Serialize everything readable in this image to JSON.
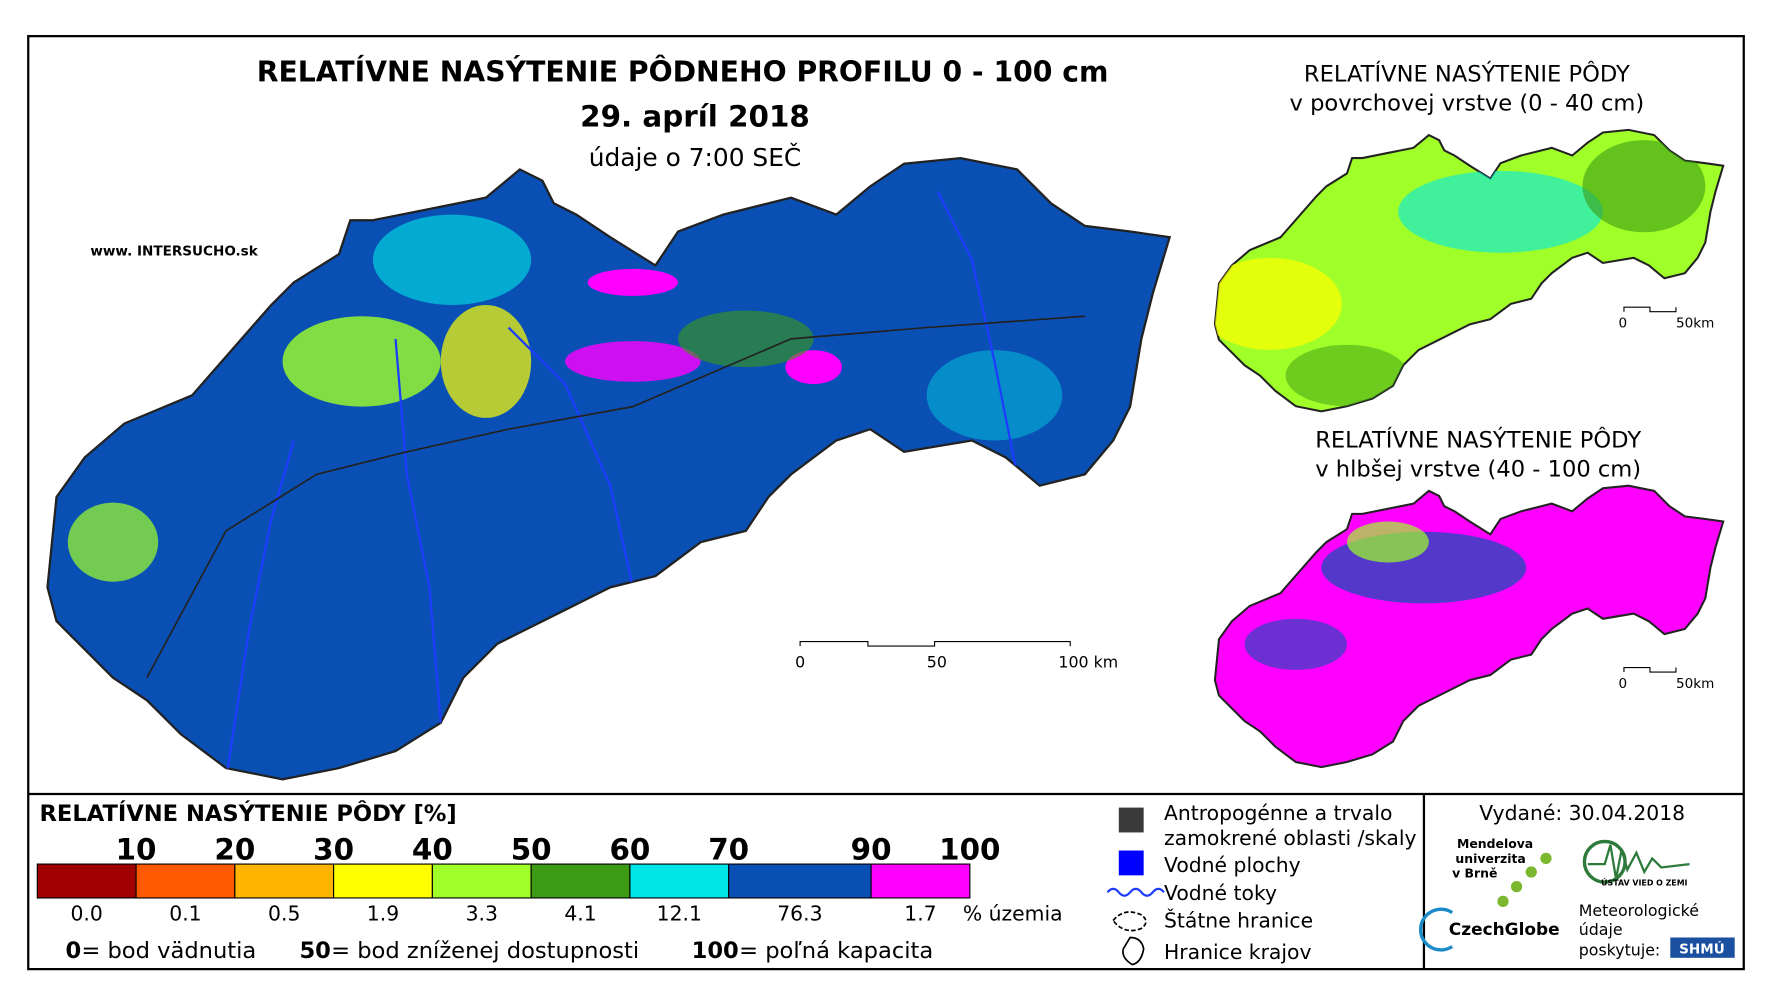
{
  "header": {
    "title": "RELATÍVNE NASÝTENIE PÔDNEHO PROFILU 0 - 100 cm",
    "date": "29. apríl 2018",
    "time_note": "údaje o 7:00 SEČ",
    "website": "www. INTERSUCHO.sk"
  },
  "main_map": {
    "scale_labels": [
      "0",
      "50",
      "100 km"
    ]
  },
  "insets": [
    {
      "title": [
        "RELATÍVNE NASÝTENIE PÔDY",
        "v povrchovej vrstve (0 - 40 cm)"
      ],
      "scale_labels": [
        "0",
        "50km"
      ]
    },
    {
      "title": [
        "RELATÍVNE NASÝTENIE PÔDY",
        "v hlbšej vrstve (40 - 100 cm)"
      ],
      "scale_labels": [
        "0",
        "50km"
      ]
    }
  ],
  "legend": {
    "title": "RELATÍVNE NASÝTENIE PÔDY [%]",
    "bounds": [
      "10",
      "20",
      "30",
      "40",
      "50",
      "60",
      "70",
      "90",
      "100"
    ],
    "classes": [
      {
        "color": "#a00000",
        "share": "0.0"
      },
      {
        "color": "#ff5a00",
        "share": "0.1"
      },
      {
        "color": "#ffb400",
        "share": "0.5"
      },
      {
        "color": "#ffff00",
        "share": "1.9"
      },
      {
        "color": "#a0ff28",
        "share": "3.3"
      },
      {
        "color": "#3c9a14",
        "share": "4.1"
      },
      {
        "color": "#00e6e6",
        "share": "12.1"
      },
      {
        "color": "#0a50b4",
        "share": "76.3"
      },
      {
        "color": "#ff00ff",
        "share": "1.7"
      }
    ],
    "share_unit": "% územia",
    "notes": [
      {
        "value": "0",
        "text": "= bod vädnutia"
      },
      {
        "value": "50",
        "text": "= bod zníženej dostupnosti"
      },
      {
        "value": "100",
        "text": "= poľná kapacita"
      }
    ]
  },
  "map_legend": {
    "items": [
      "Antropogénne a trvalo",
      "zamokrené oblasti /skaly",
      "Vodné plochy",
      "Vodné toky",
      "Štátne hranice",
      "Hranice krajov"
    ]
  },
  "footer": {
    "issued": "Vydané: 30.04.2018",
    "university": [
      "Mendelova",
      "univerzita",
      "v Brně"
    ],
    "czechglobe": "CzechGlobe",
    "institute": "ÚSTAV VIED O ZEMI",
    "provider": [
      "Meteorologické",
      "údaje",
      "poskytuje:"
    ],
    "provider_logo": "SHMÚ"
  }
}
